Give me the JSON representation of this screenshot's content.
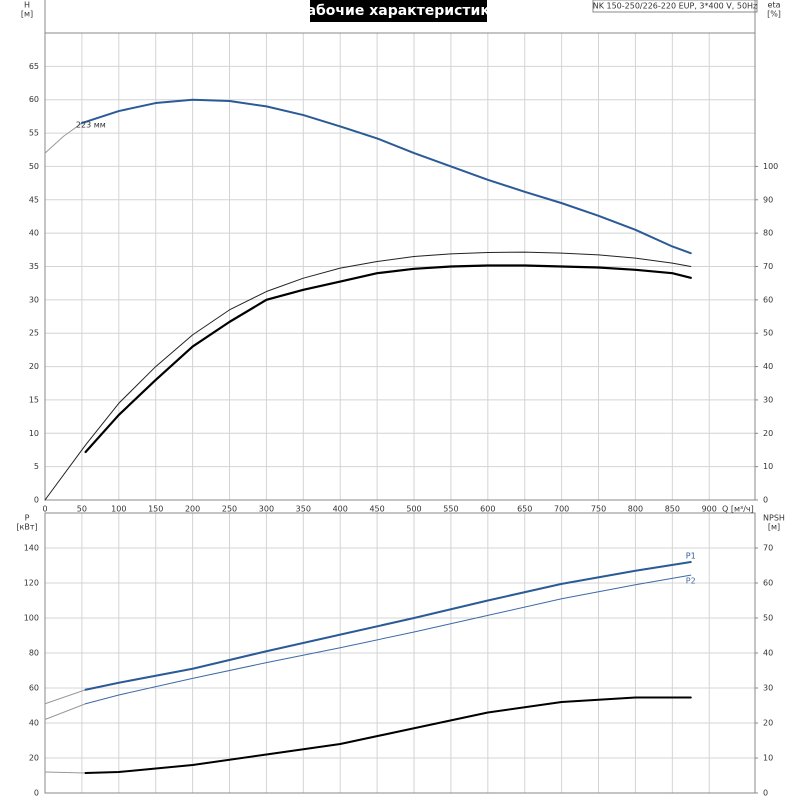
{
  "title": "Рабочие характеристики",
  "subtitle": "NK 150-250/226-220 EUP, 3*400 V, 50Hz",
  "chart_data": [
    {
      "type": "line",
      "y_label": "H",
      "y_unit": "[м]",
      "y2_label": "eta",
      "y2_unit": "[%]",
      "x_label": "Q [м³/ч]",
      "xlim": [
        0,
        962
      ],
      "xticks": [
        0,
        50,
        100,
        150,
        200,
        250,
        300,
        350,
        400,
        450,
        500,
        550,
        600,
        650,
        700,
        750,
        800,
        850,
        900
      ],
      "xtick_labels": true,
      "ylim": [
        0,
        70
      ],
      "yticks": [
        0,
        5,
        10,
        15,
        20,
        25,
        30,
        35,
        40,
        45,
        50,
        55,
        60,
        65
      ],
      "y2lim": [
        0,
        140
      ],
      "y2ticks": [
        0,
        10,
        20,
        30,
        40,
        50,
        60,
        70,
        80,
        90,
        100
      ],
      "grid": true,
      "series": [
        {
          "color": "#999999",
          "line_width": 1,
          "x": [
            0,
            25,
            50
          ],
          "values": [
            52,
            54.5,
            56.5
          ]
        },
        {
          "label": "223 мм",
          "color": "#2a5b97",
          "line_width": 2,
          "x": [
            50,
            100,
            150,
            200,
            250,
            300,
            350,
            400,
            450,
            500,
            550,
            600,
            650,
            700,
            750,
            800,
            850,
            875
          ],
          "values": [
            56.5,
            58.3,
            59.5,
            60,
            59.8,
            59,
            57.7,
            56,
            54.2,
            52,
            50,
            48,
            46.2,
            44.5,
            42.6,
            40.5,
            38,
            37
          ]
        },
        {
          "axis": "y2",
          "color": "#222222",
          "line_width": 1,
          "x": [
            0,
            55,
            100,
            150,
            200,
            250,
            300,
            350,
            400,
            450,
            500,
            550,
            600,
            650,
            700,
            750,
            800,
            850,
            875
          ],
          "values": [
            0,
            16.5,
            29,
            40,
            49.5,
            57,
            62.5,
            66.5,
            69.5,
            71.5,
            73,
            73.8,
            74.2,
            74.3,
            74,
            73.5,
            72.5,
            71,
            70
          ]
        },
        {
          "axis": "y2",
          "color": "#000000",
          "line_width": 2.2,
          "x": [
            55,
            100,
            150,
            200,
            250,
            300,
            350,
            400,
            450,
            500,
            550,
            600,
            650,
            700,
            750,
            800,
            850,
            875
          ],
          "values": [
            14.4,
            25.5,
            36,
            46,
            53.4,
            60,
            63,
            65.5,
            68,
            69.3,
            70,
            70.3,
            70.3,
            70,
            69.7,
            69,
            68,
            66.6
          ]
        }
      ]
    },
    {
      "type": "line",
      "y_label": "P",
      "y_unit": "[кВт]",
      "y2_label": "NPSH",
      "y2_unit": "[м]",
      "xlim": [
        0,
        962
      ],
      "xticks": [
        0,
        50,
        100,
        150,
        200,
        250,
        300,
        350,
        400,
        450,
        500,
        550,
        600,
        650,
        700,
        750,
        800,
        850,
        900
      ],
      "xtick_labels": false,
      "ylim": [
        0,
        160
      ],
      "yticks": [
        0,
        20,
        40,
        60,
        80,
        100,
        120,
        140
      ],
      "y2lim": [
        0,
        80
      ],
      "y2ticks": [
        0,
        10,
        20,
        30,
        40,
        50,
        60,
        70
      ],
      "grid": true,
      "series": [
        {
          "color": "#999999",
          "line_width": 1,
          "x": [
            0,
            55
          ],
          "values": [
            51,
            59
          ]
        },
        {
          "name": "P1",
          "color": "#2a5b97",
          "line_width": 2,
          "x": [
            55,
            100,
            200,
            300,
            400,
            500,
            600,
            700,
            800,
            875
          ],
          "values": [
            59,
            63,
            71,
            81,
            90.5,
            100,
            110,
            119.5,
            127,
            132
          ]
        },
        {
          "color": "#999999",
          "line_width": 1,
          "x": [
            0,
            55
          ],
          "values": [
            42,
            51
          ]
        },
        {
          "name": "P2",
          "color": "#3c6aa8",
          "line_width": 1,
          "x": [
            55,
            100,
            200,
            300,
            400,
            500,
            600,
            700,
            800,
            875
          ],
          "values": [
            51,
            56,
            65.5,
            74.5,
            83,
            92,
            101.5,
            111,
            119,
            124.5
          ]
        },
        {
          "axis": "y2",
          "color": "#999999",
          "line_width": 1,
          "x": [
            0,
            55
          ],
          "values": [
            6,
            5.7
          ]
        },
        {
          "axis": "y2",
          "color": "#000000",
          "line_width": 2,
          "x": [
            55,
            100,
            200,
            300,
            400,
            500,
            600,
            700,
            800,
            875
          ],
          "values": [
            5.7,
            6,
            8,
            11,
            14,
            18.5,
            23,
            26,
            27.3,
            27.3
          ]
        }
      ]
    }
  ]
}
